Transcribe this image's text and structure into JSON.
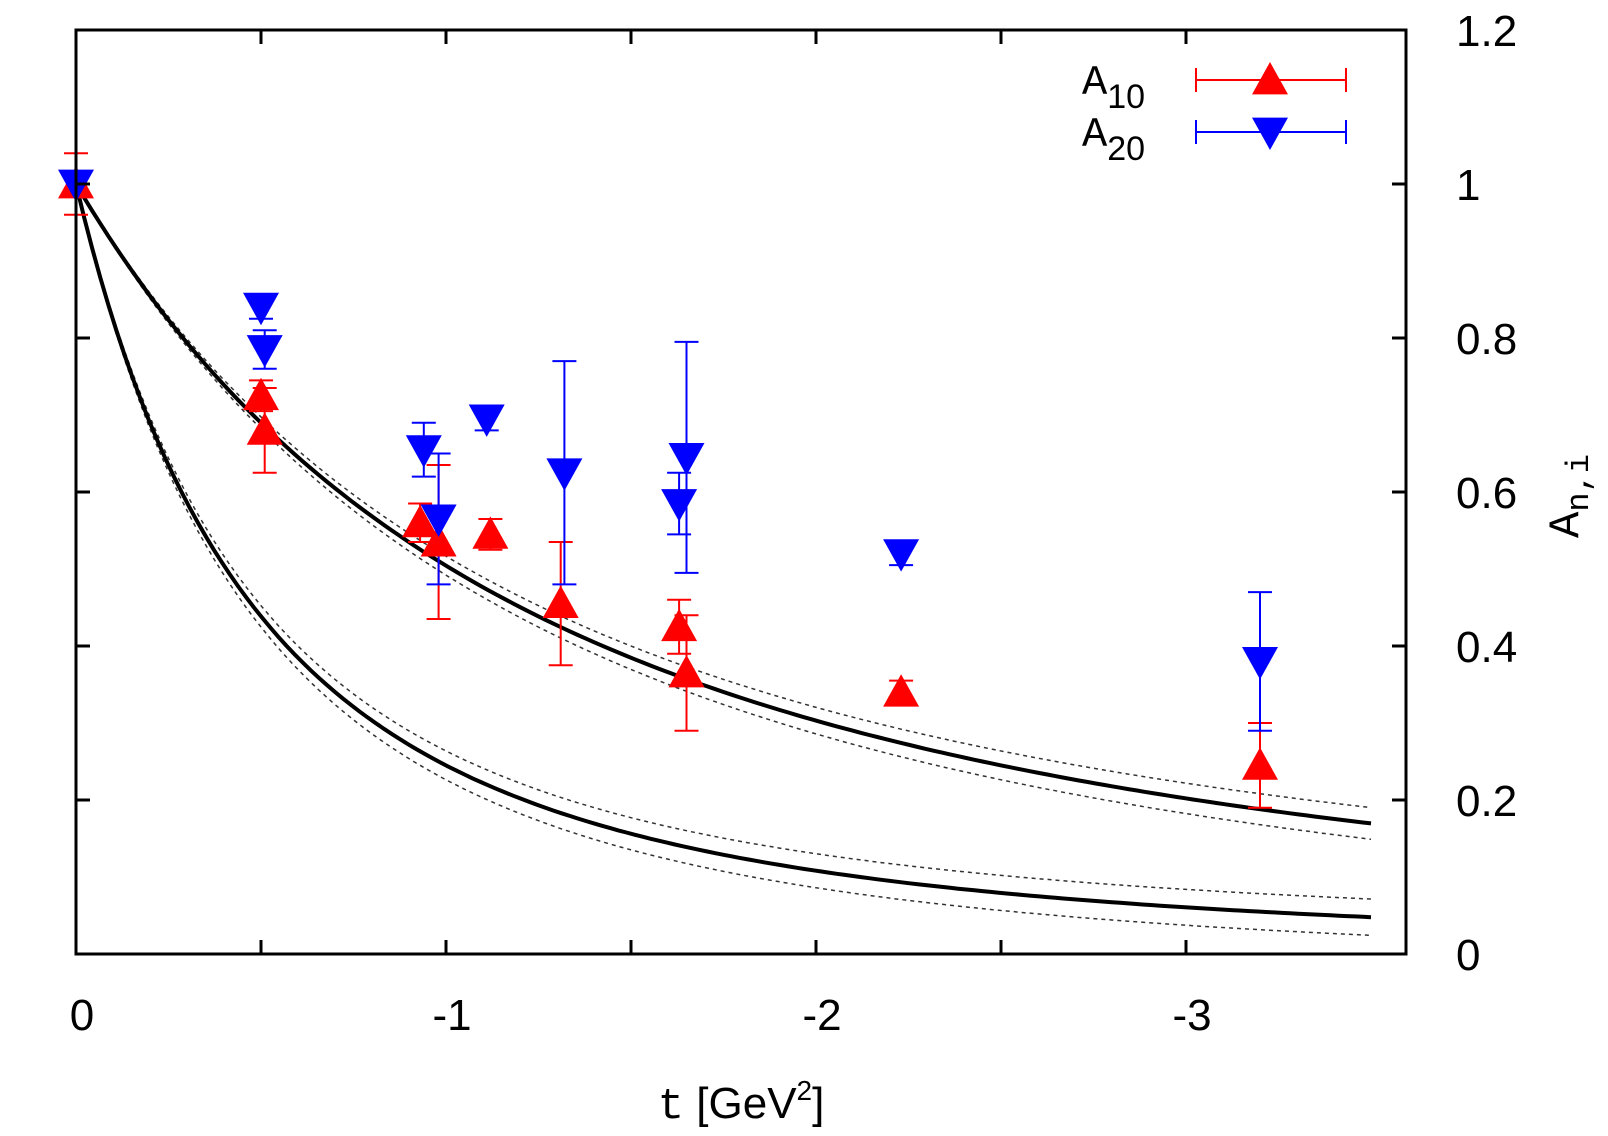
{
  "chart_data": {
    "type": "scatter",
    "title": "",
    "xlabel": {
      "prefix": "t",
      "unit_open": " [GeV",
      "unit_sup": "2",
      "unit_close": "]"
    },
    "ylabel": {
      "base": "A",
      "sub": "n,i"
    },
    "xlim": [
      0,
      -3.5
    ],
    "ylim": [
      0,
      1.2
    ],
    "x_ticks": [
      {
        "value": 0,
        "label": "0"
      },
      {
        "value": -1,
        "label": "-1"
      },
      {
        "value": -2,
        "label": "-2"
      },
      {
        "value": -3,
        "label": "-3"
      }
    ],
    "x_minor_ticks": [
      -0.5,
      -1.5,
      -2.5
    ],
    "y_ticks": [
      {
        "value": 0,
        "label": "0"
      },
      {
        "value": 0.2,
        "label": "0.2"
      },
      {
        "value": 0.4,
        "label": "0.4"
      },
      {
        "value": 0.6,
        "label": "0.6"
      },
      {
        "value": 0.8,
        "label": "0.8"
      },
      {
        "value": 1.0,
        "label": "1"
      },
      {
        "value": 1.2,
        "label": "1.2"
      }
    ],
    "y_axis_side": "right",
    "legend_position": "top-right",
    "series": [
      {
        "name": "A10",
        "label_base": "A",
        "label_sub": "10",
        "color": "#ff0000",
        "marker": "triangle-up",
        "points": [
          {
            "x": 0,
            "y": 1.0,
            "err": 0.04
          },
          {
            "x": -0.5,
            "y": 0.725,
            "err": 0.02
          },
          {
            "x": -0.51,
            "y": 0.68,
            "err": 0.055
          },
          {
            "x": -0.93,
            "y": 0.56,
            "err": 0.025
          },
          {
            "x": -0.98,
            "y": 0.535,
            "err": 0.1
          },
          {
            "x": -1.12,
            "y": 0.545,
            "err": 0.02
          },
          {
            "x": -1.31,
            "y": 0.455,
            "err": 0.08
          },
          {
            "x": -1.63,
            "y": 0.425,
            "err": 0.035
          },
          {
            "x": -1.65,
            "y": 0.365,
            "err": 0.075
          },
          {
            "x": -2.23,
            "y": 0.34,
            "err": 0.015
          },
          {
            "x": -3.2,
            "y": 0.245,
            "err": 0.055
          }
        ],
        "fit": {
          "kind": "dipole",
          "mass2": 0.98,
          "band": 0.045
        }
      },
      {
        "name": "A20",
        "label_base": "A",
        "label_sub": "20",
        "color": "#0000ff",
        "marker": "triangle-down",
        "points": [
          {
            "x": 0,
            "y": 1.0,
            "err": 0.01
          },
          {
            "x": -0.5,
            "y": 0.84,
            "err": 0.015
          },
          {
            "x": -0.51,
            "y": 0.785,
            "err": 0.025
          },
          {
            "x": -0.94,
            "y": 0.655,
            "err": 0.035
          },
          {
            "x": -0.98,
            "y": 0.565,
            "err": 0.085
          },
          {
            "x": -1.11,
            "y": 0.695,
            "err": 0.015
          },
          {
            "x": -1.32,
            "y": 0.625,
            "err": 0.145
          },
          {
            "x": -1.63,
            "y": 0.585,
            "err": 0.04
          },
          {
            "x": -1.65,
            "y": 0.645,
            "err": 0.15
          },
          {
            "x": -2.23,
            "y": 0.52,
            "err": 0.015
          },
          {
            "x": -3.2,
            "y": 0.38,
            "err": 0.09
          }
        ],
        "fit": {
          "kind": "dipole",
          "mass2": 2.45,
          "band": 0.045
        }
      }
    ]
  }
}
